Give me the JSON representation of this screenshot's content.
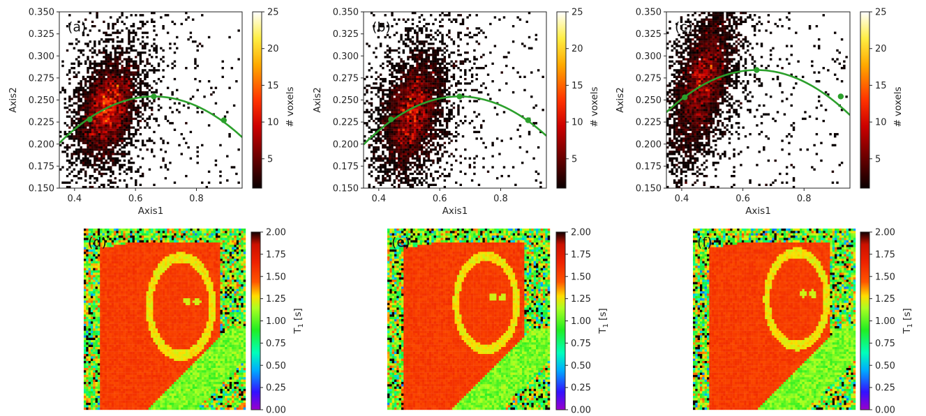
{
  "chart_data": [
    {
      "type": "heatmap",
      "panel": "(a)",
      "xlabel": "Axis1",
      "ylabel": "Axis2",
      "xlim": [
        0.35,
        0.95
      ],
      "ylim": [
        0.15,
        0.35
      ],
      "xticks": [
        "0.4",
        "0.6",
        "0.8"
      ],
      "yticks": [
        "0.150",
        "0.175",
        "0.200",
        "0.225",
        "0.250",
        "0.275",
        "0.300",
        "0.325",
        "0.350"
      ],
      "colorbar": {
        "label": "# voxels",
        "range": [
          1,
          25
        ],
        "ticks": [
          "5",
          "10",
          "15",
          "20",
          "25"
        ]
      },
      "density_peak": [
        0.51,
        0.24
      ],
      "density_spread": [
        0.045,
        0.025
      ],
      "density_tilt": 0.35,
      "fit_curve": {
        "vertex": [
          0.66,
          0.254
        ],
        "curvature": 0.55,
        "markers": [
          [
            0.45,
            0.228
          ],
          [
            0.66,
            0.254
          ],
          [
            0.89,
            0.227
          ]
        ],
        "color": "#2ca02c"
      }
    },
    {
      "type": "heatmap",
      "panel": "(b)",
      "xlabel": "Axis1",
      "ylabel": "Axis2",
      "xlim": [
        0.35,
        0.95
      ],
      "ylim": [
        0.15,
        0.35
      ],
      "xticks": [
        "0.4",
        "0.6",
        "0.8"
      ],
      "yticks": [
        "0.150",
        "0.175",
        "0.200",
        "0.225",
        "0.250",
        "0.275",
        "0.300",
        "0.325",
        "0.350"
      ],
      "colorbar": {
        "label": "# voxels",
        "range": [
          1,
          25
        ],
        "ticks": [
          "5",
          "10",
          "15",
          "20",
          "25"
        ]
      },
      "density_peak": [
        0.51,
        0.235
      ],
      "density_spread": [
        0.05,
        0.03
      ],
      "density_tilt": 0.4,
      "fit_curve": {
        "vertex": [
          0.665,
          0.254
        ],
        "curvature": 0.55,
        "markers": [
          [
            0.44,
            0.228
          ],
          [
            0.665,
            0.254
          ],
          [
            0.89,
            0.227
          ]
        ],
        "color": "#2ca02c"
      }
    },
    {
      "type": "heatmap",
      "panel": "(c)",
      "xlabel": "Axis1",
      "ylabel": "Axis2",
      "xlim": [
        0.35,
        0.95
      ],
      "ylim": [
        0.15,
        0.35
      ],
      "xticks": [
        "0.4",
        "0.6",
        "0.8"
      ],
      "yticks": [
        "0.150",
        "0.175",
        "0.200",
        "0.225",
        "0.250",
        "0.275",
        "0.300",
        "0.325",
        "0.350"
      ],
      "colorbar": {
        "label": "# voxels",
        "range": [
          1,
          25
        ],
        "ticks": [
          "5",
          "10",
          "15",
          "20",
          "25"
        ]
      },
      "density_peak": [
        0.47,
        0.27
      ],
      "density_spread": [
        0.05,
        0.035
      ],
      "density_tilt": 0.6,
      "fit_curve": {
        "vertex": [
          0.645,
          0.284
        ],
        "curvature": 0.55,
        "markers": [
          [
            0.41,
            0.253
          ],
          [
            0.645,
            0.284
          ],
          [
            0.92,
            0.254
          ]
        ],
        "color": "#2ca02c"
      }
    },
    {
      "type": "heatmap",
      "panel": "(d)",
      "colorbar": {
        "label": "T",
        "label_sub": "1",
        "label_unit": " [s]",
        "range": [
          0.0,
          2.0
        ],
        "ticks": [
          "0.00",
          "0.25",
          "0.50",
          "0.75",
          "1.00",
          "1.25",
          "1.50",
          "1.75",
          "2.00"
        ]
      },
      "image": "T1 map",
      "ring_center": [
        0.6,
        0.43
      ],
      "ring_radius": [
        0.205,
        0.285
      ]
    },
    {
      "type": "heatmap",
      "panel": "(e)",
      "colorbar": {
        "label": "T",
        "label_sub": "1",
        "label_unit": " [s]",
        "range": [
          0.0,
          2.0
        ],
        "ticks": [
          "0.00",
          "0.25",
          "0.50",
          "0.75",
          "1.00",
          "1.25",
          "1.50",
          "1.75",
          "2.00"
        ]
      },
      "image": "T1 map",
      "ring_center": [
        0.61,
        0.41
      ],
      "ring_radius": [
        0.195,
        0.27
      ]
    },
    {
      "type": "heatmap",
      "panel": "(f)",
      "colorbar": {
        "label": "T",
        "label_sub": "1",
        "label_unit": " [s]",
        "range": [
          0.0,
          2.0
        ],
        "ticks": [
          "0.00",
          "0.25",
          "0.50",
          "0.75",
          "1.00",
          "1.25",
          "1.50",
          "1.75",
          "2.00"
        ]
      },
      "image": "T1 map",
      "ring_center": [
        0.64,
        0.39
      ],
      "ring_radius": [
        0.195,
        0.27
      ]
    }
  ]
}
